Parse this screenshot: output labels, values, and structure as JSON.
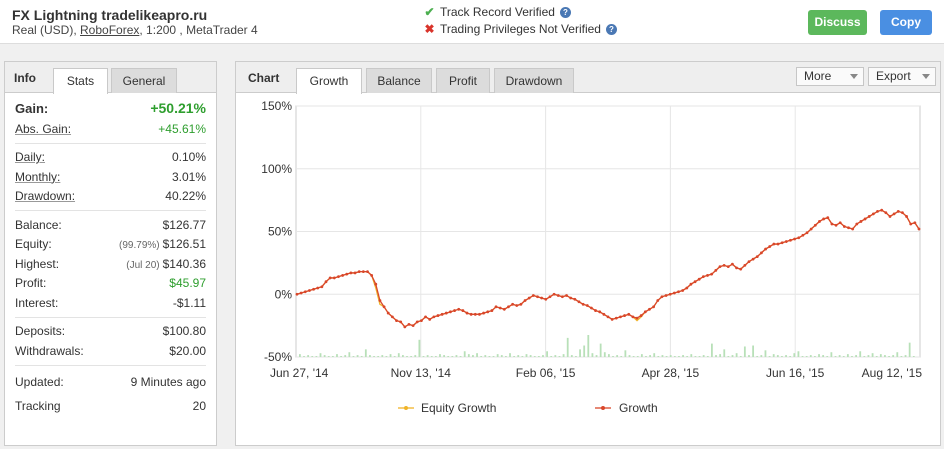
{
  "header": {
    "title": "FX Lightning tradelikeapro.ru",
    "subtitle_prefix": "Real (USD), ",
    "broker": "RoboForex",
    "subtitle_suffix": ", 1:200 , MetaTrader 4",
    "track_record": "Track Record Verified",
    "trading_privileges": "Trading Privileges Not Verified",
    "discuss_label": "Discuss",
    "copy_label": "Copy",
    "check_icon": "check-icon",
    "cross_icon": "cross-icon",
    "question_icon": "question-icon"
  },
  "info": {
    "title": "Info",
    "tabs": [
      "Stats",
      "General"
    ],
    "gain": {
      "label": "Gain:",
      "value": "+50.21%"
    },
    "abs_gain": {
      "label": "Abs. Gain:",
      "value": "+45.61%"
    },
    "daily": {
      "label": "Daily:",
      "value": "0.10%"
    },
    "monthly": {
      "label": "Monthly:",
      "value": "3.01%"
    },
    "drawdown": {
      "label": "Drawdown:",
      "value": "40.22%"
    },
    "balance": {
      "label": "Balance:",
      "value": "$126.77"
    },
    "equity": {
      "label": "Equity:",
      "note": "(99.79%)",
      "value": "$126.51"
    },
    "highest": {
      "label": "Highest:",
      "note": "(Jul 20)",
      "value": "$140.36"
    },
    "profit": {
      "label": "Profit:",
      "value": "$45.97"
    },
    "interest": {
      "label": "Interest:",
      "value": "-$1.11"
    },
    "deposits": {
      "label": "Deposits:",
      "value": "$100.80"
    },
    "withdrawals": {
      "label": "Withdrawals:",
      "value": "$20.00"
    },
    "updated": {
      "label": "Updated:",
      "value": "9 Minutes ago"
    },
    "tracking": {
      "label": "Tracking",
      "value": "20"
    }
  },
  "chart_panel": {
    "title": "Chart",
    "tabs": [
      "Growth",
      "Balance",
      "Profit",
      "Drawdown"
    ],
    "more_label": "More",
    "export_label": "Export"
  },
  "colors": {
    "growth": "#d9472b",
    "equity": "#f0b429",
    "bars": "#b8e0b8",
    "green_text": "#2e9e2e"
  },
  "chart_data": {
    "type": "line",
    "y_ticks": [
      "150%",
      "100%",
      "50%",
      "0%",
      "-50%"
    ],
    "ylim": [
      -50,
      150
    ],
    "x_ticks": [
      "Jun 27, '14",
      "Nov 13, '14",
      "Feb 06, '15",
      "Apr 28, '15",
      "Jun 16, '15",
      "Aug 12, '15"
    ],
    "legend_position": "bottom",
    "series": [
      {
        "name": "Growth",
        "values": [
          0,
          1,
          2,
          3,
          4,
          5,
          6,
          10,
          13,
          13,
          14,
          15,
          16,
          17,
          17,
          18,
          18,
          18,
          15,
          8,
          -5,
          -10,
          -15,
          -18,
          -21,
          -22,
          -26,
          -24,
          -25,
          -22,
          -21,
          -18,
          -20,
          -18,
          -17,
          -16,
          -15,
          -14,
          -13,
          -12,
          -13,
          -15,
          -16,
          -16,
          -16,
          -15,
          -14,
          -13,
          -10,
          -11,
          -12,
          -10,
          -8,
          -9,
          -8,
          -5,
          -3,
          -1,
          -2,
          -3,
          -4,
          -2,
          0,
          -1,
          -2,
          -1,
          -3,
          -4,
          -6,
          -8,
          -9,
          -11,
          -13,
          -14,
          -16,
          -18,
          -20,
          -19,
          -18,
          -17,
          -16,
          -18,
          -19,
          -17,
          -14,
          -12,
          -10,
          -5,
          -2,
          -1,
          0,
          1,
          2,
          3,
          5,
          8,
          10,
          12,
          14,
          15,
          16,
          19,
          22,
          23,
          22,
          24,
          21,
          20,
          23,
          26,
          28,
          30,
          33,
          36,
          38,
          40,
          40,
          41,
          42,
          43,
          44,
          45,
          47,
          49,
          52,
          55,
          58,
          60,
          61,
          56,
          55,
          57,
          54,
          53,
          52,
          56,
          58,
          60,
          62,
          64,
          66,
          67,
          65,
          62,
          64,
          66,
          65,
          62,
          56,
          57,
          52
        ]
      },
      {
        "name": "Equity Growth",
        "values": [
          0,
          1,
          2,
          3,
          4,
          5,
          6,
          10,
          13,
          13,
          14,
          15,
          16,
          17,
          17,
          18,
          18,
          18,
          15,
          5,
          -8,
          -10,
          -15,
          -18,
          -21,
          -22,
          -26,
          -24,
          -25,
          -22,
          -21,
          -18,
          -20,
          -18,
          -17,
          -16,
          -15,
          -14,
          -13,
          -12,
          -13,
          -15,
          -16,
          -16,
          -16,
          -15,
          -14,
          -13,
          -10,
          -11,
          -12,
          -10,
          -8,
          -9,
          -8,
          -5,
          -3,
          -1,
          -2,
          -3,
          -4,
          -2,
          0,
          -1,
          -2,
          -1,
          -3,
          -4,
          -6,
          -8,
          -9,
          -11,
          -13,
          -14,
          -16,
          -18,
          -20,
          -19,
          -18,
          -17,
          -16,
          -18,
          -21,
          -18,
          -14,
          -12,
          -10,
          -5,
          -2,
          -1,
          0,
          1,
          2,
          3,
          5,
          8,
          10,
          12,
          14,
          15,
          16,
          19,
          22,
          23,
          22,
          24,
          21,
          20,
          23,
          26,
          28,
          30,
          33,
          36,
          38,
          40,
          40,
          41,
          42,
          43,
          44,
          45,
          47,
          49,
          52,
          55,
          58,
          60,
          61,
          56,
          55,
          57,
          54,
          53,
          52,
          56,
          58,
          60,
          62,
          64,
          66,
          67,
          65,
          62,
          64,
          66,
          65,
          62,
          56,
          57,
          52
        ]
      }
    ],
    "bars_note": "",
    "bars": [
      3,
      1,
      2,
      1,
      1,
      4,
      2,
      1,
      1,
      3,
      1,
      2,
      5,
      1,
      2,
      1,
      8,
      2,
      1,
      1,
      2,
      1,
      3,
      1,
      4,
      2,
      1,
      1,
      2,
      18,
      1,
      2,
      1,
      1,
      3,
      2,
      1,
      1,
      2,
      1,
      6,
      3,
      2,
      4,
      1,
      2,
      1,
      1,
      3,
      2,
      1,
      4,
      1,
      2,
      1,
      3,
      2,
      1,
      1,
      2,
      6,
      1,
      2,
      1,
      3,
      20,
      2,
      1,
      8,
      12,
      23,
      4,
      2,
      14,
      5,
      3,
      1,
      2,
      1,
      7,
      2,
      1,
      1,
      3,
      1,
      2,
      4,
      1,
      2,
      1,
      2,
      1,
      1,
      2,
      1,
      3,
      1,
      1,
      2,
      1,
      14,
      2,
      3,
      8,
      1,
      2,
      4,
      1,
      11,
      2,
      12,
      1,
      2,
      7,
      1,
      3,
      2,
      1,
      2,
      1,
      4,
      6,
      1,
      1,
      2,
      1,
      3,
      2,
      1,
      5,
      1,
      2,
      1,
      3,
      1,
      2,
      6,
      1,
      2,
      4,
      1,
      3,
      2,
      1,
      2,
      5,
      1,
      2,
      15,
      1
    ]
  }
}
